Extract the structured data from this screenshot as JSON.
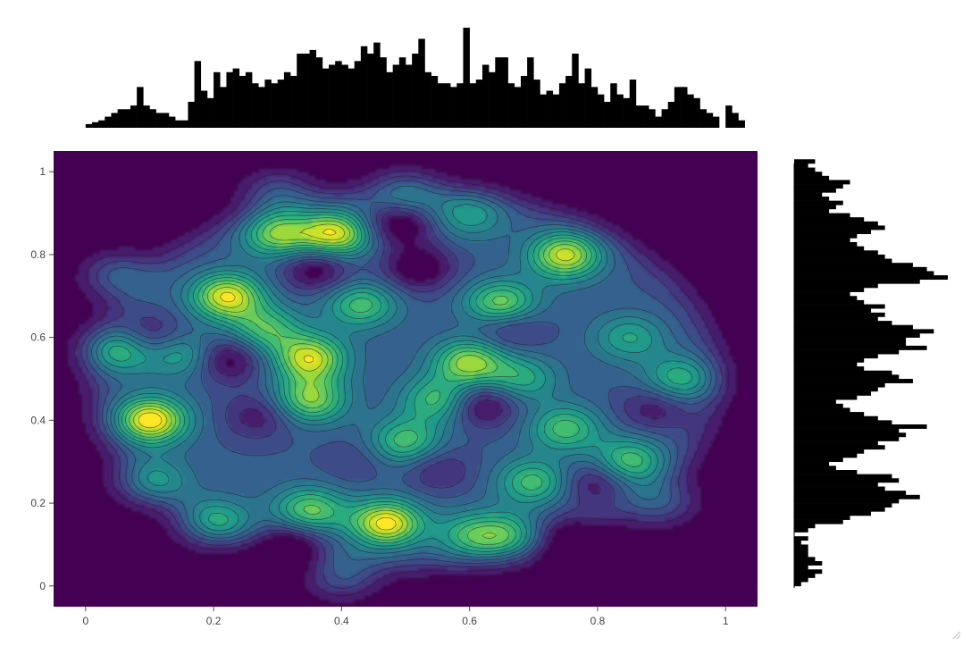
{
  "chart_data": {
    "type": "heatmap",
    "subtype": "2d-density-contour-with-marginal-histograms",
    "title": "",
    "xlabel": "",
    "ylabel": "",
    "xlim": [
      -0.05,
      1.05
    ],
    "ylim": [
      -0.05,
      1.05
    ],
    "x_ticks": [
      "0",
      "0.2",
      "0.4",
      "0.6",
      "0.8",
      "1"
    ],
    "y_ticks": [
      "0",
      "0.2",
      "0.4",
      "0.6",
      "0.8",
      "1"
    ],
    "grid": false,
    "legend": "none",
    "colorscale": [
      "#440154",
      "#482878",
      "#3e4a89",
      "#31688e",
      "#26828e",
      "#1f9e89",
      "#35b779",
      "#6ece58",
      "#b5de2b",
      "#fde725"
    ],
    "contour_line_color": "#222222",
    "density_peaks": [
      {
        "x": 0.1,
        "y": 0.4,
        "z": 1.0
      },
      {
        "x": 0.39,
        "y": 0.85,
        "z": 0.9
      },
      {
        "x": 0.3,
        "y": 0.85,
        "z": 0.7
      },
      {
        "x": 0.22,
        "y": 0.7,
        "z": 0.9
      },
      {
        "x": 0.35,
        "y": 0.55,
        "z": 0.85
      },
      {
        "x": 0.28,
        "y": 0.62,
        "z": 0.55
      },
      {
        "x": 0.47,
        "y": 0.15,
        "z": 0.95
      },
      {
        "x": 0.35,
        "y": 0.18,
        "z": 0.65
      },
      {
        "x": 0.75,
        "y": 0.8,
        "z": 0.85
      },
      {
        "x": 0.65,
        "y": 0.68,
        "z": 0.75
      },
      {
        "x": 0.43,
        "y": 0.68,
        "z": 0.55
      },
      {
        "x": 0.6,
        "y": 0.54,
        "z": 0.75
      },
      {
        "x": 0.35,
        "y": 0.45,
        "z": 0.7
      },
      {
        "x": 0.05,
        "y": 0.57,
        "z": 0.6
      },
      {
        "x": 0.15,
        "y": 0.56,
        "z": 0.45
      },
      {
        "x": 0.2,
        "y": 0.15,
        "z": 0.55
      },
      {
        "x": 0.1,
        "y": 0.25,
        "z": 0.45
      },
      {
        "x": 0.5,
        "y": 0.35,
        "z": 0.55
      },
      {
        "x": 0.75,
        "y": 0.38,
        "z": 0.55
      },
      {
        "x": 0.7,
        "y": 0.25,
        "z": 0.55
      },
      {
        "x": 0.66,
        "y": 0.12,
        "z": 0.5
      },
      {
        "x": 0.85,
        "y": 0.3,
        "z": 0.6
      },
      {
        "x": 0.93,
        "y": 0.5,
        "z": 0.5
      },
      {
        "x": 0.9,
        "y": 0.2,
        "z": 0.35
      },
      {
        "x": 0.05,
        "y": 0.75,
        "z": 0.4
      },
      {
        "x": 0.4,
        "y": 0.02,
        "z": 0.35
      },
      {
        "x": 0.6,
        "y": 0.12,
        "z": 0.45
      },
      {
        "x": 0.3,
        "y": 0.95,
        "z": 0.35
      },
      {
        "x": 0.5,
        "y": 0.95,
        "z": 0.4
      },
      {
        "x": 0.6,
        "y": 0.9,
        "z": 0.4
      },
      {
        "x": 0.55,
        "y": 0.45,
        "z": 0.55
      },
      {
        "x": 0.68,
        "y": 0.5,
        "z": 0.45
      },
      {
        "x": 0.85,
        "y": 0.6,
        "z": 0.4
      },
      {
        "x": 0.45,
        "y": 0.3,
        "z": 0.35
      }
    ],
    "density_holes": [
      {
        "x": 0.49,
        "y": 0.88,
        "z": -0.5
      },
      {
        "x": 0.36,
        "y": 0.77,
        "z": -0.45
      },
      {
        "x": 0.52,
        "y": 0.77,
        "z": -0.45
      },
      {
        "x": 0.44,
        "y": 0.3,
        "z": -0.45
      },
      {
        "x": 0.62,
        "y": 0.44,
        "z": -0.45
      },
      {
        "x": 0.22,
        "y": 0.55,
        "z": -0.45
      },
      {
        "x": 0.8,
        "y": 0.25,
        "z": -0.35
      },
      {
        "x": 0.32,
        "y": 0.1,
        "z": -0.45
      },
      {
        "x": 0.75,
        "y": 0.12,
        "z": -0.35
      },
      {
        "x": 0.1,
        "y": 0.6,
        "z": -0.35
      },
      {
        "x": 0.66,
        "y": 0.63,
        "z": -0.35
      },
      {
        "x": 0.89,
        "y": 0.43,
        "z": -0.3
      },
      {
        "x": 0.27,
        "y": 0.41,
        "z": -0.3
      },
      {
        "x": 0.55,
        "y": 0.28,
        "z": -0.25
      }
    ],
    "histogram_x": {
      "bin_start": 0.0,
      "bin_width": 0.01,
      "counts": [
        1,
        1.5,
        2,
        3,
        4,
        5,
        5,
        6,
        11,
        6,
        5,
        4,
        4,
        3,
        2,
        2,
        7,
        18,
        10,
        8,
        15,
        11,
        15,
        16,
        14,
        15,
        12,
        11,
        13,
        12,
        13,
        15,
        14,
        20,
        20,
        21,
        19,
        16,
        17,
        18,
        17,
        16,
        18,
        22,
        20,
        23,
        19,
        15,
        17,
        19,
        17,
        20,
        24,
        15,
        14,
        12,
        12,
        11,
        12,
        27,
        12,
        13,
        17,
        15,
        19,
        19,
        12,
        11,
        14,
        19,
        13,
        9,
        10,
        9,
        12,
        14,
        20,
        12,
        16,
        11,
        9,
        7,
        12,
        9,
        8,
        13,
        6,
        6,
        5,
        3,
        5,
        7,
        11,
        11,
        9,
        8,
        5,
        4,
        3,
        0,
        6,
        4,
        2
      ],
      "max_count": 27
    },
    "histogram_y": {
      "bin_start": 0.0,
      "bin_width": 0.01,
      "counts": [
        1,
        2,
        3,
        4,
        2,
        4,
        3,
        2,
        2,
        2,
        1,
        2,
        0,
        2,
        3,
        7,
        8,
        11,
        13,
        14,
        15,
        18,
        16,
        13,
        12,
        15,
        14,
        9,
        6,
        5,
        7,
        9,
        10,
        13,
        12,
        15,
        16,
        15,
        19,
        14,
        12,
        10,
        8,
        7,
        6,
        9,
        11,
        12,
        13,
        17,
        15,
        14,
        10,
        9,
        10,
        12,
        15,
        19,
        16,
        16,
        18,
        20,
        17,
        14,
        12,
        13,
        11,
        13,
        10,
        9,
        8,
        10,
        12,
        18,
        22,
        20,
        19,
        17,
        14,
        13,
        12,
        10,
        9,
        8,
        9,
        11,
        13,
        12,
        10,
        8,
        5,
        6,
        7,
        5,
        4,
        6,
        7,
        8,
        5,
        4,
        3,
        2,
        3
      ]
    }
  }
}
